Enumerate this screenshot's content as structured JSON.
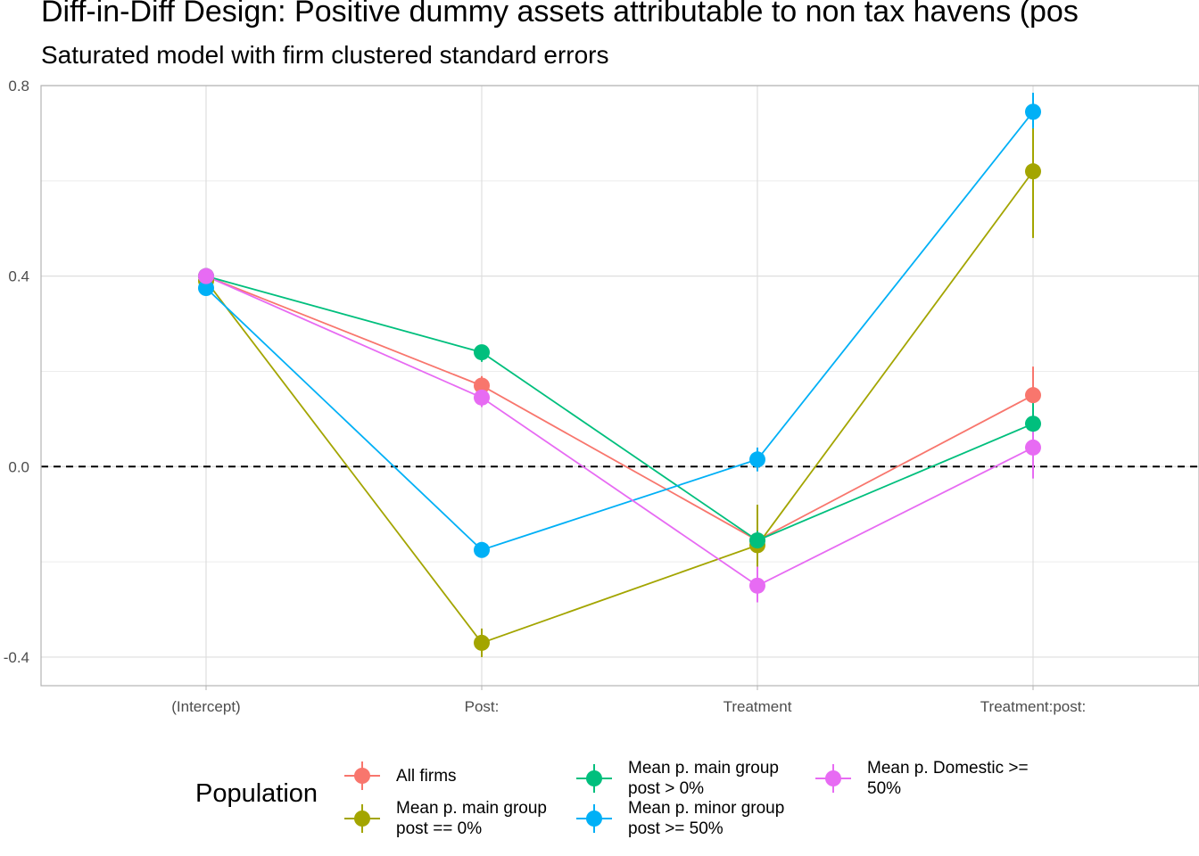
{
  "title": "Diff-in-Diff Design: Positive dummy assets attributable to non tax havens (pos",
  "subtitle": "Saturated model with firm clustered standard errors",
  "legend": {
    "title": "Population"
  },
  "colors": {
    "All firms": "#F8766D",
    "Mean p. main group post == 0%": "#A3A500",
    "Mean p. main group post > 0%": "#00BF7D",
    "Mean p. minor group post >= 50%": "#00B0F6",
    "Mean p. Domestic >= 50%": "#E76BF3"
  },
  "chart_data": {
    "type": "line",
    "categories": [
      "(Intercept)",
      "Post:",
      "Treatment",
      "Treatment:post:"
    ],
    "ylim": [
      -0.46,
      0.8
    ],
    "yticks": [
      -0.4,
      0.0,
      0.4,
      0.8
    ],
    "ytick_labels": [
      "-0.4",
      "0.0",
      "0.4",
      "0.8"
    ],
    "grid": true,
    "reference_line": 0.0,
    "legend_position": "bottom",
    "series": [
      {
        "name": "All firms",
        "label": "All firms",
        "values": [
          0.4,
          0.17,
          -0.155,
          0.15
        ],
        "ci_low": [
          0.39,
          0.15,
          -0.175,
          0.1
        ],
        "ci_high": [
          0.41,
          0.19,
          -0.135,
          0.21
        ]
      },
      {
        "name": "Mean p. main group post == 0%",
        "label": "Mean p. main group\npost == 0%",
        "values": [
          0.39,
          -0.37,
          -0.165,
          0.62
        ],
        "ci_low": [
          0.375,
          -0.4,
          -0.21,
          0.48
        ],
        "ci_high": [
          0.41,
          -0.34,
          -0.08,
          0.74
        ]
      },
      {
        "name": "Mean p. main group post > 0%",
        "label": "Mean p. main group\npost > 0%",
        "values": [
          0.4,
          0.24,
          -0.155,
          0.09
        ],
        "ci_low": [
          0.39,
          0.22,
          -0.175,
          0.035
        ],
        "ci_high": [
          0.41,
          0.255,
          -0.135,
          0.15
        ]
      },
      {
        "name": "Mean p. minor group post >= 50%",
        "label": "Mean p. minor group\npost >= 50%",
        "values": [
          0.375,
          -0.175,
          0.015,
          0.745
        ],
        "ci_low": [
          0.365,
          -0.19,
          -0.01,
          0.71
        ],
        "ci_high": [
          0.385,
          -0.16,
          0.04,
          0.785
        ]
      },
      {
        "name": "Mean p. Domestic >= 50%",
        "label": "Mean p. Domestic >=\n50%",
        "values": [
          0.4,
          0.145,
          -0.25,
          0.04
        ],
        "ci_low": [
          0.39,
          0.125,
          -0.285,
          -0.025
        ],
        "ci_high": [
          0.41,
          0.165,
          -0.21,
          0.1
        ]
      }
    ]
  }
}
